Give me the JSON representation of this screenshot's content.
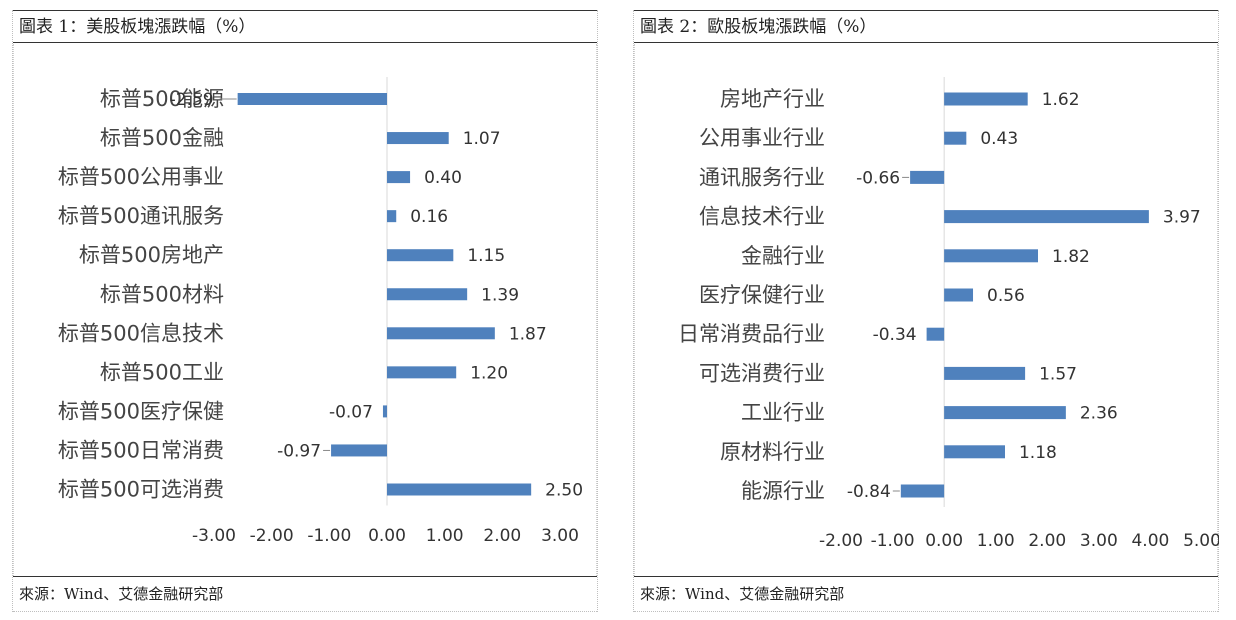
{
  "chart_data": [
    {
      "type": "bar",
      "orientation": "horizontal",
      "title": "圖表 1：美股板塊漲跌幅（%）",
      "source": "來源：Wind、艾德金融研究部",
      "categories": [
        "标普500能源",
        "标普500金融",
        "标普500公用事业",
        "标普500通讯服务",
        "标普500房地产",
        "标普500材料",
        "标普500信息技术",
        "标普500工业",
        "标普500医疗保健",
        "标普500日常消费",
        "标普500可选消费"
      ],
      "values": [
        -2.59,
        1.07,
        0.4,
        0.16,
        1.15,
        1.39,
        1.87,
        1.2,
        -0.07,
        -0.97,
        2.5
      ],
      "labels": [
        "-2.59",
        "1.07",
        "0.40",
        "0.16",
        "1.15",
        "1.39",
        "1.87",
        "1.20",
        "-0.07",
        "-0.97",
        "2.50"
      ],
      "xlim": [
        -3,
        3
      ],
      "ticks": [
        -3,
        -2,
        -1,
        0,
        1,
        2,
        3
      ],
      "tick_labels": [
        "-3.00",
        "-2.00",
        "-1.00",
        "0.00",
        "1.00",
        "2.00",
        "3.00"
      ],
      "grid": false,
      "legend": "none",
      "bar_color": "#4f81bd"
    },
    {
      "type": "bar",
      "orientation": "horizontal",
      "title": "圖表 2：歐股板塊漲跌幅（%）",
      "source": "來源：Wind、艾德金融研究部",
      "categories": [
        "房地产行业",
        "公用事业行业",
        "通讯服务行业",
        "信息技术行业",
        "金融行业",
        "医疗保健行业",
        "日常消费品行业",
        "可选消费行业",
        "工业行业",
        "原材料行业",
        "能源行业"
      ],
      "values": [
        1.62,
        0.43,
        -0.66,
        3.97,
        1.82,
        0.56,
        -0.34,
        1.57,
        2.36,
        1.18,
        -0.84
      ],
      "labels": [
        "1.62",
        "0.43",
        "-0.66",
        "3.97",
        "1.82",
        "0.56",
        "-0.34",
        "1.57",
        "2.36",
        "1.18",
        "-0.84"
      ],
      "xlim": [
        -2,
        5
      ],
      "ticks": [
        -2,
        -1,
        0,
        1,
        2,
        3,
        4,
        5
      ],
      "tick_labels": [
        "-2.00",
        "-1.00",
        "0.00",
        "1.00",
        "2.00",
        "3.00",
        "4.00",
        "5.00"
      ],
      "grid": false,
      "legend": "none",
      "bar_color": "#4f81bd"
    }
  ]
}
